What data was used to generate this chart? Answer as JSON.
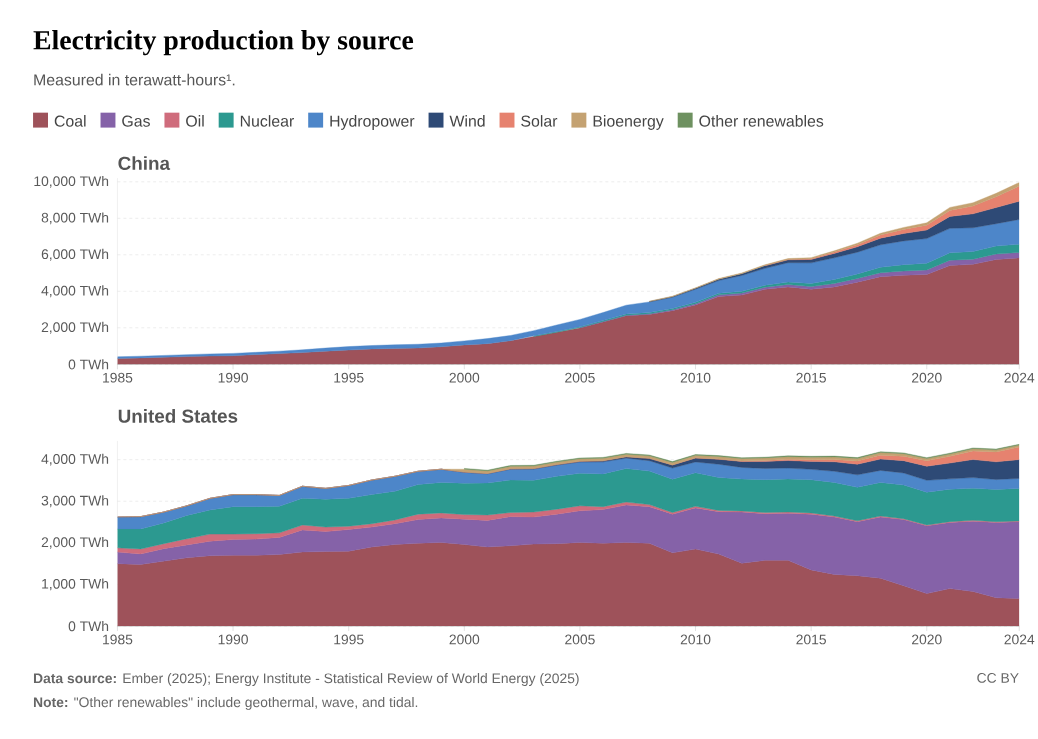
{
  "chart_data": [
    {
      "type": "area",
      "title": "Electricity production by source",
      "subtitle": "Measured in terawatt-hours¹.",
      "annotations": [
        "China"
      ],
      "stacked": true,
      "grid": "y",
      "x": [
        1985,
        1986,
        1987,
        1988,
        1989,
        1990,
        1991,
        1992,
        1993,
        1994,
        1995,
        1996,
        1997,
        1998,
        1999,
        2000,
        2001,
        2002,
        2003,
        2004,
        2005,
        2006,
        2007,
        2008,
        2009,
        2010,
        2011,
        2012,
        2013,
        2014,
        2015,
        2016,
        2017,
        2018,
        2019,
        2020,
        2021,
        2022,
        2023,
        2024
      ],
      "xlim": [
        1985,
        2024
      ],
      "xticks": [
        1985,
        1990,
        1995,
        2000,
        2005,
        2010,
        2015,
        2020,
        2024
      ],
      "ylim": [
        0,
        10200
      ],
      "yticks": [
        {
          "value": 0,
          "label": "0 TWh"
        },
        {
          "value": 2000,
          "label": "2,000 TWh"
        },
        {
          "value": 4000,
          "label": "4,000 TWh"
        },
        {
          "value": 6000,
          "label": "6,000 TWh"
        },
        {
          "value": 8000,
          "label": "8,000 TWh"
        },
        {
          "value": 10000,
          "label": "10,000 TWh"
        }
      ],
      "series": [
        {
          "color": "#9e525a",
          "values": [
            318,
            350,
            385,
            420,
            450,
            470,
            530,
            590,
            640,
            720,
            780,
            840,
            870,
            890,
            960,
            1060,
            1130,
            1290,
            1520,
            1750,
            1990,
            2320,
            2660,
            2730,
            2940,
            3250,
            3720,
            3790,
            4110,
            4240,
            4110,
            4240,
            4500,
            4800,
            4880,
            4920,
            5410,
            5480,
            5740,
            5830
          ]
        },
        {
          "color": "#8562a8",
          "values": [
            null,
            null,
            null,
            null,
            null,
            null,
            null,
            null,
            null,
            null,
            null,
            null,
            null,
            null,
            null,
            null,
            null,
            null,
            null,
            null,
            20,
            25,
            30,
            35,
            50,
            70,
            85,
            110,
            115,
            130,
            150,
            190,
            200,
            220,
            230,
            250,
            290,
            280,
            300,
            300
          ]
        },
        {
          "color": "#2c9990",
          "values": [
            null,
            null,
            null,
            null,
            null,
            null,
            null,
            null,
            null,
            null,
            null,
            null,
            null,
            null,
            null,
            null,
            null,
            null,
            40,
            50,
            53,
            55,
            62,
            68,
            70,
            74,
            86,
            97,
            112,
            133,
            171,
            213,
            248,
            295,
            348,
            366,
            408,
            418,
            435,
            451
          ]
        },
        {
          "color": "#4d86c9",
          "values": [
            92,
            94,
            100,
            109,
            118,
            127,
            125,
            131,
            152,
            168,
            190,
            188,
            196,
            208,
            204,
            222,
            277,
            288,
            284,
            353,
            397,
            436,
            486,
            585,
            616,
            722,
            699,
            872,
            920,
            1064,
            1127,
            1193,
            1194,
            1232,
            1302,
            1355,
            1340,
            1303,
            1229,
            1354
          ]
        },
        {
          "color": "#2e4a76",
          "values": [
            null,
            null,
            null,
            null,
            null,
            null,
            null,
            null,
            null,
            null,
            null,
            null,
            null,
            null,
            null,
            null,
            null,
            null,
            null,
            null,
            null,
            null,
            null,
            20,
            30,
            45,
            70,
            96,
            141,
            156,
            186,
            241,
            295,
            366,
            406,
            467,
            656,
            763,
            886,
            997
          ]
        },
        {
          "color": "#e6826f",
          "values": [
            null,
            null,
            null,
            null,
            null,
            null,
            null,
            null,
            null,
            null,
            null,
            null,
            null,
            null,
            null,
            null,
            null,
            null,
            null,
            null,
            null,
            null,
            null,
            null,
            null,
            null,
            null,
            null,
            10,
            20,
            45,
            75,
            118,
            177,
            224,
            261,
            327,
            428,
            584,
            834
          ]
        },
        {
          "color": "#c4a272",
          "values": [
            null,
            null,
            null,
            null,
            null,
            null,
            null,
            null,
            null,
            null,
            null,
            null,
            null,
            null,
            null,
            null,
            null,
            null,
            null,
            null,
            null,
            null,
            null,
            20,
            25,
            30,
            35,
            40,
            45,
            50,
            55,
            65,
            80,
            90,
            110,
            135,
            165,
            180,
            195,
            200
          ]
        }
      ]
    },
    {
      "type": "area",
      "title": "United States",
      "legend": "top",
      "annotations": [
        "**Data source:** Ember (2025); Energy Institute - Statistical Review of World Energy (2025)",
        "**Note:** \"Other renewables\" include geothermal, wave, and tidal.",
        "CC BY"
      ],
      "stacked": true,
      "grid": "y",
      "x": [
        1985,
        1986,
        1987,
        1988,
        1989,
        1990,
        1991,
        1992,
        1993,
        1994,
        1995,
        1996,
        1997,
        1998,
        1999,
        2000,
        2001,
        2002,
        2003,
        2004,
        2005,
        2006,
        2007,
        2008,
        2009,
        2010,
        2011,
        2012,
        2013,
        2014,
        2015,
        2016,
        2017,
        2018,
        2019,
        2020,
        2021,
        2022,
        2023,
        2024
      ],
      "xlim": [
        1985,
        2024
      ],
      "xticks": [
        1985,
        1990,
        1995,
        2000,
        2005,
        2010,
        2015,
        2020,
        2024
      ],
      "ylim": [
        0,
        4450
      ],
      "yticks": [
        {
          "value": 0,
          "label": "0 TWh"
        },
        {
          "value": 1000,
          "label": "1,000 TWh"
        },
        {
          "value": 2000,
          "label": "2,000 TWh"
        },
        {
          "value": 3000,
          "label": "3,000 TWh"
        },
        {
          "value": 4000,
          "label": "4,000 TWh"
        }
      ],
      "series": [
        {
          "name": "Coal",
          "color": "#9e525a",
          "values": [
            1500,
            1480,
            1560,
            1640,
            1690,
            1700,
            1700,
            1720,
            1780,
            1790,
            1800,
            1900,
            1960,
            1990,
            2010,
            1960,
            1900,
            1930,
            1970,
            1980,
            2010,
            1990,
            2010,
            1990,
            1760,
            1850,
            1730,
            1510,
            1580,
            1580,
            1350,
            1240,
            1210,
            1150,
            970,
            780,
            900,
            830,
            680,
            660
          ]
        },
        {
          "name": "Gas",
          "color": "#8562a8",
          "values": [
            280,
            250,
            300,
            310,
            350,
            380,
            390,
            410,
            530,
            480,
            520,
            480,
            500,
            570,
            590,
            610,
            640,
            700,
            650,
            710,
            760,
            810,
            900,
            880,
            930,
            990,
            1020,
            1230,
            1120,
            1130,
            1340,
            1380,
            1300,
            1470,
            1590,
            1630,
            1590,
            1690,
            1810,
            1850
          ]
        },
        {
          "name": "Oil",
          "color": "#cf6c7c",
          "values": [
            100,
            120,
            120,
            150,
            170,
            130,
            130,
            110,
            120,
            110,
            80,
            80,
            90,
            130,
            120,
            110,
            130,
            100,
            120,
            120,
            120,
            70,
            70,
            50,
            40,
            37,
            30,
            25,
            30,
            30,
            30,
            25,
            20,
            25,
            20,
            18,
            20,
            22,
            17,
            17
          ]
        },
        {
          "name": "Nuclear",
          "color": "#2c9990",
          "values": [
            450,
            480,
            500,
            560,
            580,
            660,
            650,
            640,
            640,
            670,
            670,
            700,
            690,
            710,
            730,
            754,
            769,
            780,
            764,
            788,
            782,
            787,
            806,
            806,
            799,
            807,
            790,
            769,
            789,
            797,
            797,
            806,
            805,
            807,
            809,
            790,
            778,
            772,
            775,
            782
          ]
        },
        {
          "name": "Hydropower",
          "color": "#4d86c9",
          "values": [
            290,
            300,
            260,
            230,
            280,
            290,
            290,
            260,
            290,
            260,
            310,
            350,
            360,
            320,
            320,
            260,
            220,
            260,
            270,
            270,
            270,
            290,
            250,
            250,
            270,
            260,
            320,
            280,
            270,
            260,
            250,
            270,
            300,
            290,
            290,
            285,
            250,
            255,
            240,
            240
          ]
        },
        {
          "name": "Wind",
          "color": "#2e4a76",
          "values": [
            0,
            0,
            0,
            0,
            0,
            0,
            0,
            0,
            0,
            0,
            0,
            0,
            0,
            0,
            0,
            6,
            8,
            10,
            11,
            14,
            18,
            27,
            34,
            55,
            74,
            95,
            120,
            140,
            168,
            182,
            190,
            227,
            254,
            273,
            296,
            338,
            380,
            434,
            425,
            453
          ]
        },
        {
          "name": "Solar",
          "color": "#e6826f",
          "values": [
            0,
            0,
            0,
            0,
            0,
            0,
            0,
            0,
            0,
            0,
            0,
            0,
            0,
            0,
            0,
            0,
            0,
            0,
            0,
            0,
            0,
            0,
            0,
            0,
            0,
            4,
            7,
            12,
            22,
            28,
            39,
            54,
            77,
            93,
            107,
            130,
            163,
            205,
            238,
            300
          ]
        },
        {
          "name": "Bioenergy",
          "color": "#c4a272",
          "values": [
            0,
            0,
            0,
            0,
            0,
            0,
            0,
            0,
            0,
            0,
            0,
            0,
            0,
            0,
            0,
            70,
            60,
            60,
            60,
            60,
            60,
            60,
            60,
            60,
            60,
            60,
            60,
            60,
            60,
            64,
            64,
            63,
            63,
            63,
            60,
            57,
            55,
            53,
            50,
            48
          ]
        },
        {
          "name": "Other renewables",
          "color": "#6e9160",
          "values": [
            null,
            null,
            null,
            null,
            null,
            null,
            null,
            null,
            null,
            null,
            null,
            null,
            null,
            null,
            null,
            20,
            20,
            20,
            20,
            20,
            20,
            20,
            20,
            20,
            20,
            20,
            20,
            20,
            20,
            20,
            20,
            20,
            20,
            20,
            20,
            20,
            20,
            20,
            20,
            20
          ]
        }
      ]
    }
  ]
}
